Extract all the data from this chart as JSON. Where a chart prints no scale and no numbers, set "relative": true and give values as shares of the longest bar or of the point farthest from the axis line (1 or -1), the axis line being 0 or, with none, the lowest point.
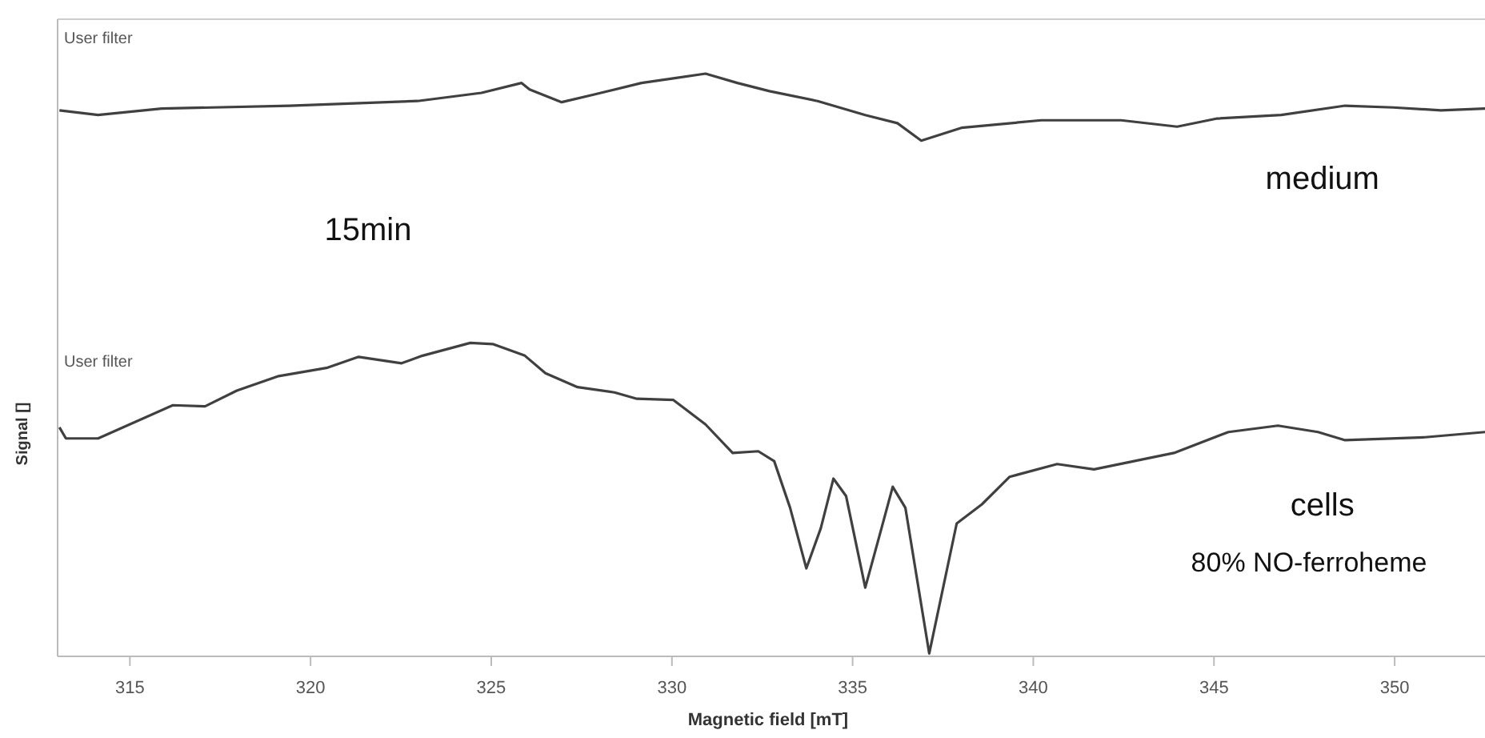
{
  "chart_data": {
    "type": "line",
    "xlabel": "Magnetic field [mT]",
    "ylabel": "Signal []",
    "relative": true,
    "xlim": [
      313,
      352.5
    ],
    "xticks": [
      315,
      320,
      325,
      330,
      335,
      340,
      345,
      350
    ],
    "grid": false,
    "marker": "none",
    "line_style": "solid",
    "annotations": [
      "User filter",
      "User filter",
      "15min",
      "80% NO-ferroheme"
    ],
    "series": [
      {
        "name": "medium",
        "color": "#404040",
        "x": [
          313.05,
          314.12,
          315.88,
          319.42,
          322.96,
          324.73,
          325.84,
          326.06,
          326.95,
          327.83,
          329.16,
          330.04,
          330.93,
          331.81,
          332.7,
          334.03,
          335.35,
          336.24,
          336.9,
          338.01,
          340.22,
          342.43,
          343.98,
          345.09,
          346.86,
          348.63,
          349.96,
          351.28,
          352.5
        ],
        "values": [
          0.937,
          0.929,
          0.94,
          0.945,
          0.953,
          0.967,
          0.984,
          0.973,
          0.951,
          0.964,
          0.984,
          0.992,
          1,
          0.984,
          0.97,
          0.953,
          0.929,
          0.915,
          0.885,
          0.907,
          0.92,
          0.92,
          0.909,
          0.923,
          0.929,
          0.945,
          0.942,
          0.937,
          0.94
        ]
      },
      {
        "name": "cells",
        "color": "#404040",
        "x": [
          313.05,
          313.23,
          314.12,
          316.19,
          317.08,
          317.96,
          319.12,
          320.44,
          321.33,
          322.52,
          323.1,
          324.42,
          325.04,
          325.93,
          326.5,
          327.39,
          328.41,
          329.03,
          330.04,
          330.93,
          331.68,
          332.39,
          332.83,
          333.27,
          333.72,
          334.12,
          334.47,
          334.82,
          335.35,
          335.8,
          336.11,
          336.46,
          337.12,
          337.88,
          338.58,
          339.34,
          340.66,
          341.68,
          343.89,
          345.4,
          346.77,
          347.88,
          348.63,
          350.84,
          352.5
        ],
        "values": [
          0.393,
          0.374,
          0.374,
          0.431,
          0.429,
          0.456,
          0.481,
          0.495,
          0.514,
          0.503,
          0.516,
          0.538,
          0.536,
          0.516,
          0.486,
          0.462,
          0.453,
          0.442,
          0.44,
          0.398,
          0.349,
          0.352,
          0.335,
          0.255,
          0.151,
          0.22,
          0.305,
          0.275,
          0.118,
          0.22,
          0.291,
          0.255,
          0.005,
          0.228,
          0.261,
          0.308,
          0.33,
          0.321,
          0.349,
          0.385,
          0.396,
          0.385,
          0.371,
          0.376,
          0.385
        ]
      }
    ]
  }
}
